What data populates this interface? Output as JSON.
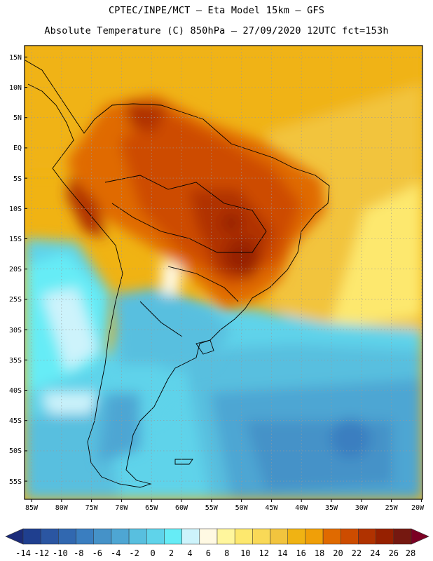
{
  "header": {
    "line1": "CPTEC/INPE/MCT –  Eta Model 15km – GFS",
    "line2": "Absolute Temperature (C) 850hPa – 27/09/2020 12UTC fct=153h"
  },
  "map": {
    "lat_labels": [
      "15N",
      "10N",
      "5N",
      "EQ",
      "5S",
      "10S",
      "15S",
      "20S",
      "25S",
      "30S",
      "35S",
      "40S",
      "45S",
      "50S",
      "55S"
    ],
    "lon_labels": [
      "85W",
      "80W",
      "75W",
      "70W",
      "65W",
      "60W",
      "55W",
      "50W",
      "45W",
      "40W",
      "35W",
      "30W",
      "25W",
      "20W"
    ]
  },
  "colorbar": {
    "labels": [
      "-14",
      "-12",
      "-10",
      "-8",
      "-6",
      "-4",
      "-2",
      "0",
      "2",
      "4",
      "6",
      "8",
      "10",
      "12",
      "14",
      "16",
      "18",
      "20",
      "22",
      "24",
      "26",
      "28"
    ],
    "colors": [
      "#1f3f8f",
      "#2b56a2",
      "#3168b0",
      "#3a7ec0",
      "#4592c8",
      "#4ea6d3",
      "#58bfdf",
      "#5fd3ea",
      "#66ecf6",
      "#cdf3fb",
      "#fff9e3",
      "#fff69d",
      "#fde86e",
      "#f9d957",
      "#f2c43e",
      "#f0b313",
      "#f09f08",
      "#e06a00",
      "#cd4c00",
      "#b03200",
      "#962000",
      "#751810"
    ],
    "under_color": "#1b2b7a",
    "over_color": "#7b0024"
  }
}
